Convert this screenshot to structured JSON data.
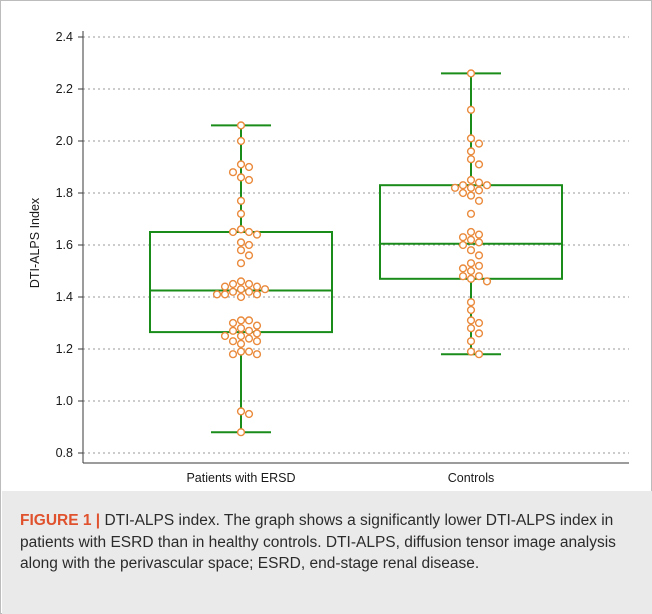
{
  "chart_data": {
    "type": "box",
    "xlabel": "",
    "ylabel": "DTI-ALPS Index",
    "ylim": [
      0.8,
      2.4
    ],
    "yticks": [
      "0.8",
      "1.0",
      "1.2",
      "1.4",
      "1.6",
      "1.8",
      "2.0",
      "2.2",
      "2.4"
    ],
    "grid": "horizontal dotted",
    "legend": "none",
    "categories": [
      "Patients with ERSD",
      "Controls"
    ],
    "colors": {
      "box": "#1a8c1a",
      "points": "#ea8a3c",
      "grid": "#9a9a9a"
    },
    "boxes": [
      {
        "category": "Patients with ERSD",
        "min": 0.88,
        "q1": 1.265,
        "median": 1.425,
        "q3": 1.65,
        "max": 2.06
      },
      {
        "category": "Controls",
        "min": 1.18,
        "q1": 1.47,
        "median": 1.605,
        "q3": 1.83,
        "max": 2.26
      }
    ],
    "points": [
      [
        2.06,
        2.0,
        1.91,
        1.9,
        1.86,
        1.85,
        1.88,
        1.77,
        1.72,
        1.66,
        1.65,
        1.65,
        1.64,
        1.61,
        1.6,
        1.58,
        1.56,
        1.53,
        1.46,
        1.45,
        1.45,
        1.44,
        1.44,
        1.43,
        1.43,
        1.42,
        1.42,
        1.41,
        1.41,
        1.41,
        1.4,
        1.31,
        1.31,
        1.3,
        1.29,
        1.28,
        1.27,
        1.27,
        1.26,
        1.25,
        1.25,
        1.24,
        1.23,
        1.23,
        1.22,
        1.19,
        1.19,
        1.18,
        1.18,
        0.96,
        0.95,
        0.88
      ],
      [
        2.26,
        2.12,
        2.01,
        1.99,
        1.96,
        1.93,
        1.91,
        1.85,
        1.84,
        1.83,
        1.83,
        1.82,
        1.82,
        1.81,
        1.8,
        1.79,
        1.77,
        1.72,
        1.65,
        1.64,
        1.63,
        1.62,
        1.61,
        1.6,
        1.58,
        1.56,
        1.53,
        1.52,
        1.51,
        1.5,
        1.48,
        1.48,
        1.47,
        1.46,
        1.38,
        1.35,
        1.31,
        1.3,
        1.28,
        1.26,
        1.23,
        1.19,
        1.18
      ]
    ]
  },
  "caption": {
    "head": "FIGURE 1 |",
    "body": " DTI-ALPS index. The graph shows a significantly lower DTI-ALPS index in patients with ESRD than in healthy controls. DTI-ALPS, diffusion tensor image analysis along with the perivascular space; ESRD, end-stage renal disease."
  }
}
